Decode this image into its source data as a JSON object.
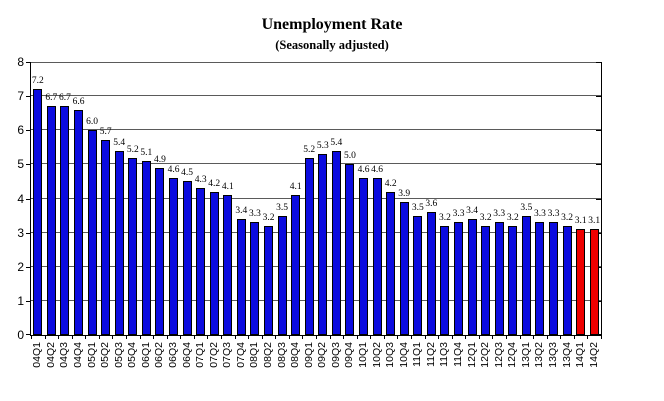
{
  "chart_data": {
    "type": "bar",
    "title": "Unemployment Rate",
    "subtitle": "(Seasonally adjusted)",
    "categories": [
      "04Q1",
      "04Q2",
      "04Q3",
      "04Q4",
      "05Q1",
      "05Q2",
      "05Q3",
      "05Q4",
      "06Q1",
      "06Q2",
      "06Q3",
      "06Q4",
      "07Q1",
      "07Q2",
      "07Q3",
      "07Q4",
      "08Q1",
      "08Q2",
      "08Q3",
      "08Q4",
      "09Q1",
      "09Q2",
      "09Q3",
      "09Q4",
      "10Q1",
      "10Q2",
      "10Q3",
      "10Q4",
      "11Q1",
      "11Q2",
      "11Q3",
      "11Q4",
      "12Q1",
      "12Q2",
      "12Q3",
      "12Q4",
      "13Q1",
      "13Q2",
      "13Q3",
      "13Q4",
      "14Q1",
      "14Q2"
    ],
    "values": [
      7.2,
      6.7,
      6.7,
      6.6,
      6.0,
      5.7,
      5.4,
      5.2,
      5.1,
      4.9,
      4.6,
      4.5,
      4.3,
      4.2,
      4.1,
      3.4,
      3.3,
      3.2,
      3.5,
      4.1,
      5.2,
      5.3,
      5.4,
      5.0,
      4.6,
      4.6,
      4.2,
      3.9,
      3.5,
      3.6,
      3.2,
      3.3,
      3.4,
      3.2,
      3.3,
      3.2,
      3.5,
      3.3,
      3.3,
      3.2,
      3.1,
      3.1
    ],
    "value_labels": [
      "7.2",
      "6.7",
      "6.7",
      "6.6",
      "6.0",
      "5.7",
      "5.4",
      "5.2",
      "5.1",
      "4.9",
      "4.6",
      "4.5",
      "4.3",
      "4.2",
      "4.1",
      "3.4",
      "3.3",
      "3.2",
      "3.5",
      "4.1",
      "5.2",
      "5.3",
      "5.4",
      "5.0",
      "4.6",
      "4.6",
      "4.2",
      "3.9",
      "3.5",
      "3.6",
      "3.2",
      "3.3",
      "3.4",
      "3.2",
      "3.3",
      "3.2",
      "3.5",
      "3.3",
      "3.3",
      "3.2",
      "3.1",
      "3.1"
    ],
    "ylim": [
      0,
      8
    ],
    "ytick_step": 1,
    "ytick_labels": [
      "0",
      "1",
      "2",
      "3",
      "4",
      "5",
      "6",
      "7",
      "8"
    ],
    "grid": true,
    "legend": false,
    "bar_color": "#0b0bdf",
    "highlight_color": "#ee0000",
    "highlight_indices": [
      40,
      41
    ],
    "xlabel": "",
    "ylabel": ""
  }
}
